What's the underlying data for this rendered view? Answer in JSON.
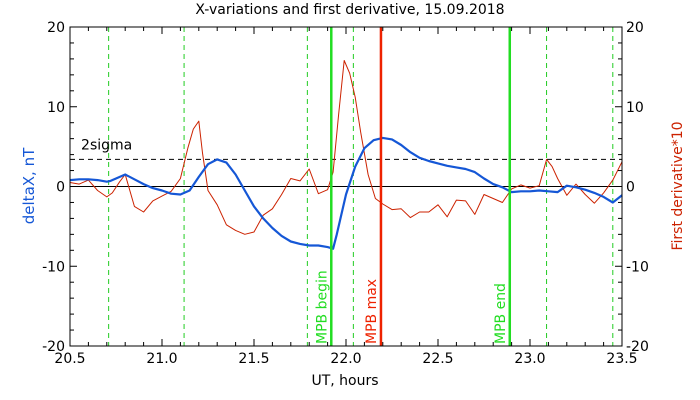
{
  "chart_data": {
    "type": "line",
    "title": "X-variations and first derivative, 15.09.2018",
    "xlabel": "UT, hours",
    "ylabel_left": "deltaX, nT",
    "ylabel_right": "First derivative*10",
    "xlim": [
      20.5,
      23.5
    ],
    "ylim": [
      -20,
      20
    ],
    "xticks": [
      "20.5",
      "21.0",
      "21.5",
      "22.0",
      "22.5",
      "23.0",
      "23.5"
    ],
    "yticks": [
      "20",
      "10",
      "0",
      "-10",
      "-20"
    ],
    "grid": false,
    "colors": {
      "deltaX": "#1557d6",
      "derivative": "#cc2200",
      "mpb_boundary": "#22dd22",
      "mpb_max": "#ee2200",
      "sigma_marker": "#22cc22"
    },
    "threshold": {
      "label": "2sigma",
      "value": 3.4
    },
    "vertical_lines": [
      {
        "x": 21.92,
        "label": "MPB begin",
        "kind": "mpb_boundary"
      },
      {
        "x": 22.19,
        "label": "MPB max",
        "kind": "mpb_max"
      },
      {
        "x": 22.89,
        "label": "MPB end",
        "kind": "mpb_boundary"
      }
    ],
    "dashed_markers": [
      20.71,
      21.12,
      21.79,
      22.04,
      23.09,
      23.45
    ],
    "series": [
      {
        "key": "deltaX",
        "x": [
          20.5,
          20.55,
          20.6,
          20.65,
          20.7,
          20.72,
          20.75,
          20.8,
          20.85,
          20.9,
          20.95,
          21.0,
          21.05,
          21.1,
          21.15,
          21.2,
          21.25,
          21.3,
          21.35,
          21.4,
          21.45,
          21.5,
          21.55,
          21.6,
          21.65,
          21.7,
          21.75,
          21.8,
          21.85,
          21.9,
          21.93,
          21.95,
          22.0,
          22.05,
          22.1,
          22.15,
          22.2,
          22.25,
          22.3,
          22.35,
          22.4,
          22.45,
          22.5,
          22.55,
          22.6,
          22.65,
          22.7,
          22.75,
          22.8,
          22.85,
          22.9,
          22.95,
          23.0,
          23.05,
          23.1,
          23.15,
          23.2,
          23.25,
          23.3,
          23.35,
          23.4,
          23.45,
          23.5
        ],
        "y": [
          0.8,
          0.9,
          0.9,
          0.8,
          0.6,
          0.7,
          1.0,
          1.5,
          0.9,
          0.3,
          -0.2,
          -0.5,
          -0.9,
          -1.0,
          -0.5,
          1.2,
          2.8,
          3.4,
          3.0,
          1.5,
          -0.5,
          -2.5,
          -4.0,
          -5.2,
          -6.2,
          -6.9,
          -7.2,
          -7.4,
          -7.4,
          -7.6,
          -7.8,
          -6.0,
          -1.0,
          2.5,
          4.8,
          5.8,
          6.1,
          5.9,
          5.2,
          4.3,
          3.6,
          3.2,
          2.9,
          2.6,
          2.4,
          2.2,
          1.8,
          1.0,
          0.3,
          -0.1,
          -0.7,
          -0.6,
          -0.6,
          -0.5,
          -0.6,
          -0.7,
          0.1,
          -0.1,
          -0.4,
          -0.8,
          -1.3,
          -2.0,
          -1.1
        ]
      },
      {
        "key": "derivative",
        "x": [
          20.5,
          20.55,
          20.6,
          20.65,
          20.7,
          20.73,
          20.77,
          20.8,
          20.85,
          20.9,
          20.95,
          21.0,
          21.05,
          21.1,
          21.14,
          21.17,
          21.2,
          21.22,
          21.25,
          21.3,
          21.35,
          21.4,
          21.45,
          21.5,
          21.55,
          21.6,
          21.65,
          21.7,
          21.75,
          21.8,
          21.85,
          21.9,
          21.93,
          21.96,
          21.99,
          22.02,
          22.05,
          22.08,
          22.12,
          22.16,
          22.2,
          22.25,
          22.3,
          22.35,
          22.4,
          22.45,
          22.5,
          22.55,
          22.6,
          22.65,
          22.7,
          22.75,
          22.8,
          22.85,
          22.9,
          22.95,
          23.0,
          23.05,
          23.09,
          23.12,
          23.15,
          23.2,
          23.25,
          23.3,
          23.35,
          23.4,
          23.45,
          23.5
        ],
        "y": [
          0.5,
          0.3,
          0.8,
          -0.5,
          -1.3,
          -0.8,
          0.6,
          1.5,
          -2.5,
          -3.2,
          -1.8,
          -1.2,
          -0.6,
          1.0,
          4.8,
          7.2,
          8.2,
          4.2,
          -0.5,
          -2.3,
          -4.8,
          -5.5,
          -6.0,
          -5.7,
          -3.6,
          -2.8,
          -1.0,
          1.0,
          0.7,
          2.2,
          -0.9,
          -0.4,
          1.8,
          9.0,
          15.8,
          14.2,
          11.2,
          6.8,
          1.5,
          -1.5,
          -2.2,
          -2.9,
          -2.8,
          -3.9,
          -3.2,
          -3.2,
          -2.3,
          -3.8,
          -1.7,
          -1.8,
          -3.5,
          -1.0,
          -1.5,
          -2.0,
          -0.3,
          0.2,
          -0.2,
          0.1,
          3.4,
          2.5,
          1.0,
          -1.1,
          0.3,
          -1.0,
          -2.1,
          -0.8,
          0.8,
          3.1
        ]
      }
    ]
  }
}
